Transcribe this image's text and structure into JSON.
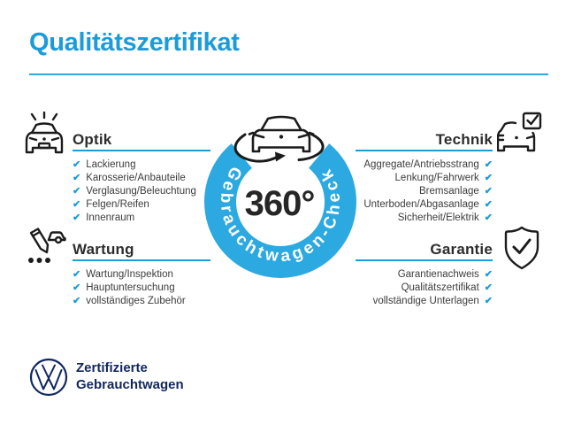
{
  "title": "Qualitätszertifikat",
  "center": {
    "value": "360°",
    "ring_label": "Gebrauchtwagen-Check",
    "icon": "car-rotation-icon"
  },
  "sections": [
    {
      "label": "Optik",
      "icon": "car-shine-icon",
      "items": [
        "Lackierung",
        "Karosserie/Anbauteile",
        "Verglasung/Beleuchtung",
        "Felgen/Reifen",
        "Innenraum"
      ]
    },
    {
      "label": "Technik",
      "icon": "car-checkbox-icon",
      "items": [
        "Aggregate/Antriebsstrang",
        "Lenkung/Fahrwerk",
        "Bremsanlage",
        "Unterboden/Abgasanlage",
        "Sicherheit/Elektrik"
      ]
    },
    {
      "label": "Wartung",
      "icon": "pencil-car-checklist-icon",
      "items": [
        "Wartung/Inspektion",
        "Hauptuntersuchung",
        "vollständiges Zubehör"
      ]
    },
    {
      "label": "Garantie",
      "icon": "shield-check-icon",
      "items": [
        "Garantienachweis",
        "Qualitätszertifikat",
        "vollständige Unterlagen"
      ]
    }
  ],
  "footer": {
    "logo": "vw-logo",
    "line1": "Zertifizierte",
    "line2": "Gebrauchtwagen"
  },
  "checkmark": "✔",
  "colors": {
    "accent": "#1b9cd8",
    "ring": "#2ba9e0",
    "heading_text": "#2d2d2d",
    "item_text": "#3c3c3c",
    "navy": "#10275f"
  }
}
